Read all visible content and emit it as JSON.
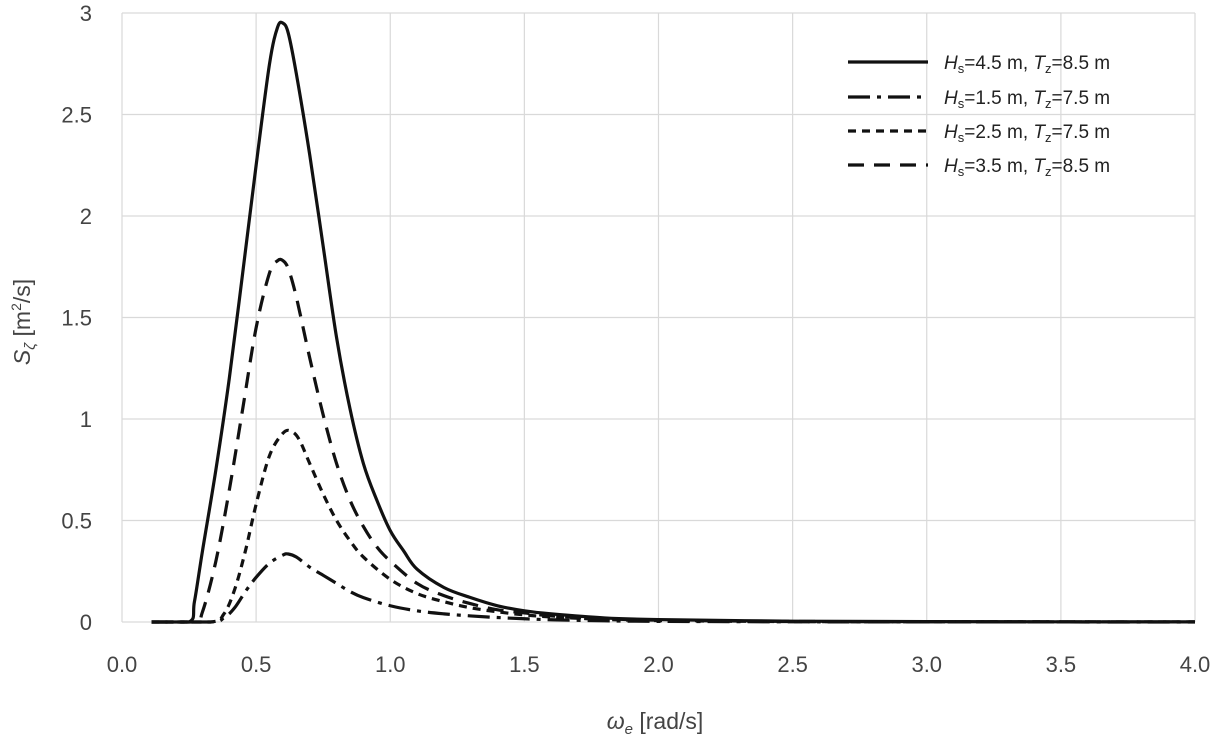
{
  "chart_data": {
    "type": "line",
    "xlabel": {
      "symbol": "ω",
      "sub": "e",
      "unit": " [rad/s]"
    },
    "ylabel": {
      "symbol": "S",
      "sub": "ζ",
      "unit_pre": " [m",
      "unit_sup": "2",
      "unit_post": "/s]"
    },
    "xlim": [
      0.0,
      4.0
    ],
    "ylim": [
      0,
      3
    ],
    "xticks": [
      "0.0",
      "0.5",
      "1.0",
      "1.5",
      "2.0",
      "2.5",
      "3.0",
      "3.5",
      "4.0"
    ],
    "yticks": [
      "0",
      "0.5",
      "1",
      "1.5",
      "2",
      "2.5",
      "3"
    ],
    "grid": true,
    "legend_position": "top-right",
    "series": [
      {
        "name": "Hs=4.5 m, Tz=8.5 m",
        "legend": {
          "h": "H",
          "hs": "s",
          "hv": "=4.5 m, ",
          "t": "T",
          "ts": "z",
          "tv": "=8.5 m"
        },
        "style": "solid",
        "x": [
          0.11,
          0.25,
          0.27,
          0.3,
          0.35,
          0.4,
          0.45,
          0.5,
          0.55,
          0.58,
          0.6,
          0.62,
          0.65,
          0.7,
          0.75,
          0.8,
          0.85,
          0.9,
          0.95,
          1.0,
          1.05,
          1.1,
          1.2,
          1.3,
          1.4,
          1.5,
          1.6,
          1.8,
          2.0,
          2.5,
          3.0,
          3.5,
          4.0
        ],
        "y": [
          0,
          0,
          0.1,
          0.35,
          0.75,
          1.2,
          1.72,
          2.25,
          2.75,
          2.93,
          2.95,
          2.9,
          2.7,
          2.3,
          1.85,
          1.4,
          1.05,
          0.78,
          0.6,
          0.45,
          0.35,
          0.26,
          0.17,
          0.12,
          0.08,
          0.055,
          0.04,
          0.02,
          0.012,
          0.004,
          0.002,
          0.001,
          0.0005
        ]
      },
      {
        "name": "Hs=1.5 m, Tz=7.5 m",
        "legend": {
          "h": "H",
          "hs": "s",
          "hv": "=1.5 m, ",
          "t": "T",
          "ts": "z",
          "tv": "=7.5 m"
        },
        "style": "dashdot",
        "x": [
          0.11,
          0.33,
          0.38,
          0.42,
          0.46,
          0.5,
          0.55,
          0.6,
          0.62,
          0.65,
          0.7,
          0.75,
          0.8,
          0.85,
          0.9,
          1.0,
          1.1,
          1.2,
          1.3,
          1.4,
          1.5,
          1.6,
          1.8,
          2.0,
          2.5,
          3.0,
          3.5,
          4.0
        ],
        "y": [
          0,
          0,
          0.02,
          0.07,
          0.15,
          0.22,
          0.29,
          0.33,
          0.335,
          0.32,
          0.27,
          0.23,
          0.19,
          0.15,
          0.12,
          0.08,
          0.055,
          0.04,
          0.03,
          0.022,
          0.016,
          0.011,
          0.006,
          0.003,
          0.001,
          0.0005,
          0.0002,
          0.0001
        ]
      },
      {
        "name": "Hs=2.5 m, Tz=7.5 m",
        "legend": {
          "h": "H",
          "hs": "s",
          "hv": "=2.5 m, ",
          "t": "T",
          "ts": "z",
          "tv": "=7.5 m"
        },
        "style": "dashed-short",
        "x": [
          0.11,
          0.33,
          0.38,
          0.42,
          0.46,
          0.5,
          0.55,
          0.6,
          0.63,
          0.66,
          0.7,
          0.75,
          0.8,
          0.85,
          0.9,
          1.0,
          1.1,
          1.2,
          1.3,
          1.4,
          1.5,
          1.6,
          1.8,
          2.0,
          2.5,
          3.0,
          3.5,
          4.0
        ],
        "y": [
          0,
          0,
          0.04,
          0.16,
          0.35,
          0.58,
          0.82,
          0.93,
          0.94,
          0.9,
          0.78,
          0.63,
          0.5,
          0.4,
          0.32,
          0.21,
          0.14,
          0.1,
          0.07,
          0.05,
          0.035,
          0.025,
          0.013,
          0.007,
          0.002,
          0.001,
          0.0004,
          0.0002
        ]
      },
      {
        "name": "Hs=3.5 m, Tz=8.5 m",
        "legend": {
          "h": "H",
          "hs": "s",
          "hv": "=3.5 m, ",
          "t": "T",
          "ts": "z",
          "tv": "=8.5 m"
        },
        "style": "dashed-long",
        "x": [
          0.11,
          0.27,
          0.3,
          0.35,
          0.4,
          0.45,
          0.5,
          0.55,
          0.58,
          0.6,
          0.62,
          0.65,
          0.7,
          0.75,
          0.8,
          0.85,
          0.9,
          0.95,
          1.0,
          1.1,
          1.2,
          1.3,
          1.4,
          1.5,
          1.6,
          1.8,
          2.0,
          2.5,
          3.0,
          3.5,
          4.0
        ],
        "y": [
          0,
          0,
          0.05,
          0.3,
          0.65,
          1.05,
          1.45,
          1.72,
          1.78,
          1.78,
          1.74,
          1.6,
          1.3,
          1.02,
          0.78,
          0.6,
          0.47,
          0.37,
          0.3,
          0.19,
          0.13,
          0.09,
          0.06,
          0.045,
          0.03,
          0.016,
          0.009,
          0.003,
          0.001,
          0.0005,
          0.0003
        ]
      }
    ]
  }
}
